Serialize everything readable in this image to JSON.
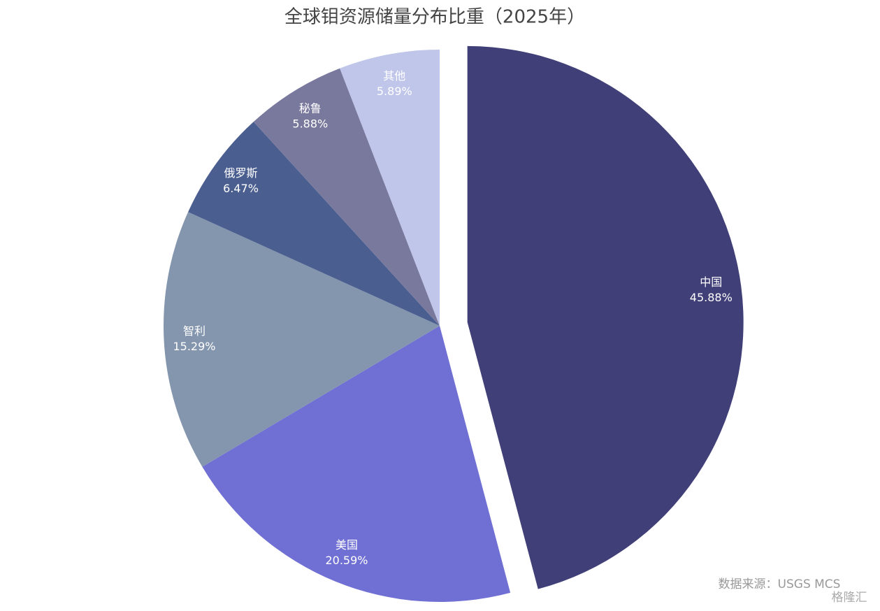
{
  "chart_data": {
    "type": "pie",
    "title": "全球钼资源储量分布比重（2025年）",
    "categories": [
      "中国",
      "美国",
      "智利",
      "俄罗斯",
      "秘鲁",
      "其他"
    ],
    "values": [
      45.88,
      20.59,
      15.29,
      6.47,
      5.88,
      5.89
    ],
    "value_labels": [
      "45.88%",
      "20.59%",
      "15.29%",
      "6.47%",
      "5.88%",
      "5.89%"
    ],
    "colors": [
      "#413f78",
      "#7070d4",
      "#8495ae",
      "#4a5e90",
      "#79799e",
      "#c0c6ea"
    ],
    "explode": [
      true,
      false,
      false,
      false,
      false,
      false
    ],
    "source": "数据来源：USGS MCS",
    "watermark": "格隆汇"
  }
}
